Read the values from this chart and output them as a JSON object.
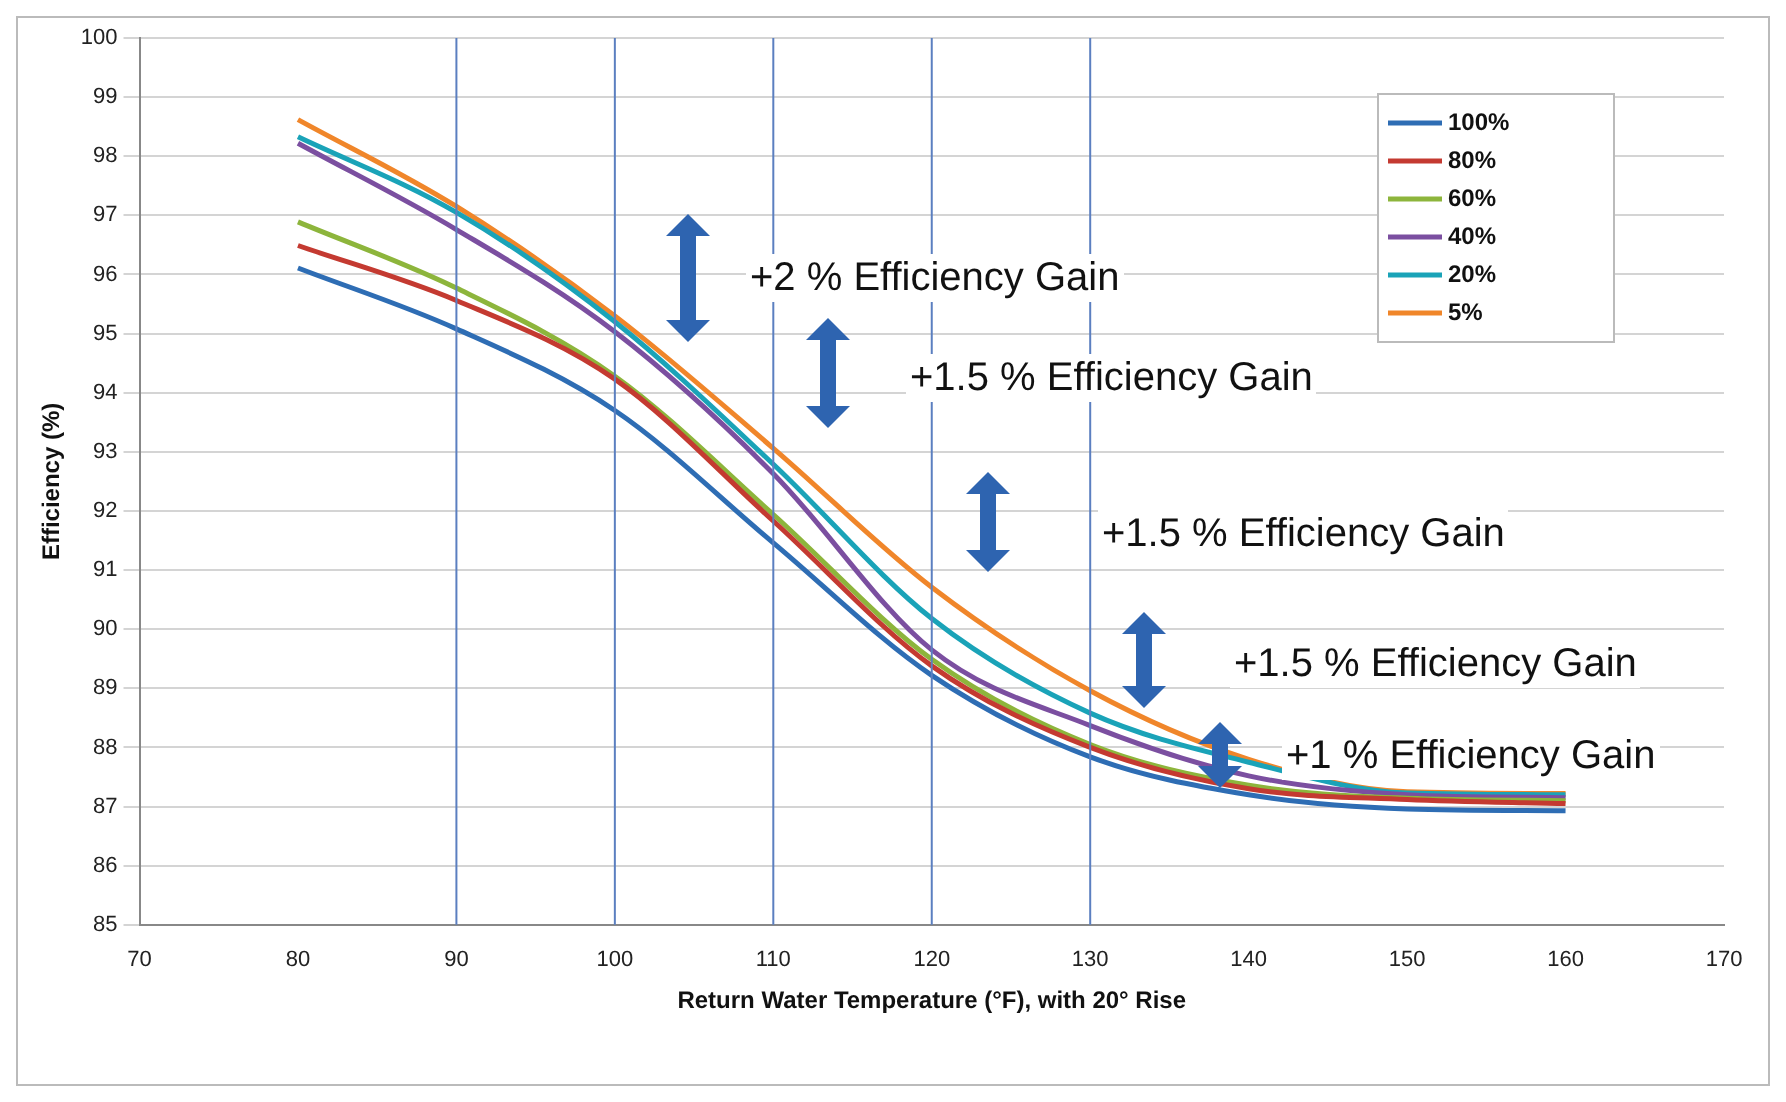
{
  "chart_data": {
    "type": "line",
    "xlabel": "Return Water Temperature (°F), with 20° Rise",
    "ylabel": "Efficiency (%)",
    "x": [
      80,
      90,
      100,
      110,
      120,
      130,
      140,
      150,
      160
    ],
    "series": [
      {
        "name": "100%",
        "color": "#2e6db4",
        "values": [
          96.11,
          95.08,
          93.7,
          91.46,
          89.22,
          87.84,
          87.2,
          86.96,
          86.93
        ]
      },
      {
        "name": "80%",
        "color": "#c43a31",
        "values": [
          96.49,
          95.56,
          94.23,
          91.83,
          89.38,
          88.0,
          87.3,
          87.12,
          87.05
        ]
      },
      {
        "name": "60%",
        "color": "#8db53c",
        "values": [
          96.89,
          95.77,
          94.28,
          91.94,
          89.49,
          88.05,
          87.36,
          87.14,
          87.1
        ]
      },
      {
        "name": "40%",
        "color": "#7b4fa0",
        "values": [
          98.22,
          96.76,
          95.03,
          92.63,
          89.65,
          88.37,
          87.52,
          87.2,
          87.15
        ]
      },
      {
        "name": "20%",
        "color": "#1aa3b8",
        "values": [
          98.33,
          97.05,
          95.2,
          92.79,
          90.18,
          88.58,
          87.75,
          87.23,
          87.2
        ]
      },
      {
        "name": "5%",
        "color": "#f0862a",
        "values": [
          98.62,
          97.15,
          95.3,
          93.06,
          90.71,
          88.96,
          87.8,
          87.25,
          87.22
        ]
      }
    ],
    "xlim": [
      70,
      170
    ],
    "xticks": [
      70,
      80,
      90,
      100,
      110,
      120,
      130,
      140,
      150,
      160,
      170
    ],
    "ylim": [
      85,
      100
    ],
    "yticks": [
      85,
      86,
      87,
      88,
      89,
      90,
      91,
      92,
      93,
      94,
      95,
      96,
      97,
      98,
      99,
      100
    ],
    "grid": "y",
    "legend": "top right",
    "marker": "none",
    "line_style": "solid",
    "ref_lines": [
      {
        "axis": "x",
        "value": 90,
        "color": "#5b7fc0"
      },
      {
        "axis": "x",
        "value": 100,
        "color": "#5b7fc0"
      },
      {
        "axis": "x",
        "value": 110,
        "color": "#5b7fc0"
      },
      {
        "axis": "x",
        "value": 120,
        "color": "#5b7fc0"
      },
      {
        "axis": "x",
        "value": 130,
        "color": "#5b7fc0"
      }
    ],
    "annotations": [
      "+2 % Efficiency Gain",
      "+1.5 % Efficiency Gain",
      "+1.5 % Efficiency Gain",
      "+1.5 % Efficiency Gain",
      "+1 % Efficiency Gain"
    ]
  }
}
